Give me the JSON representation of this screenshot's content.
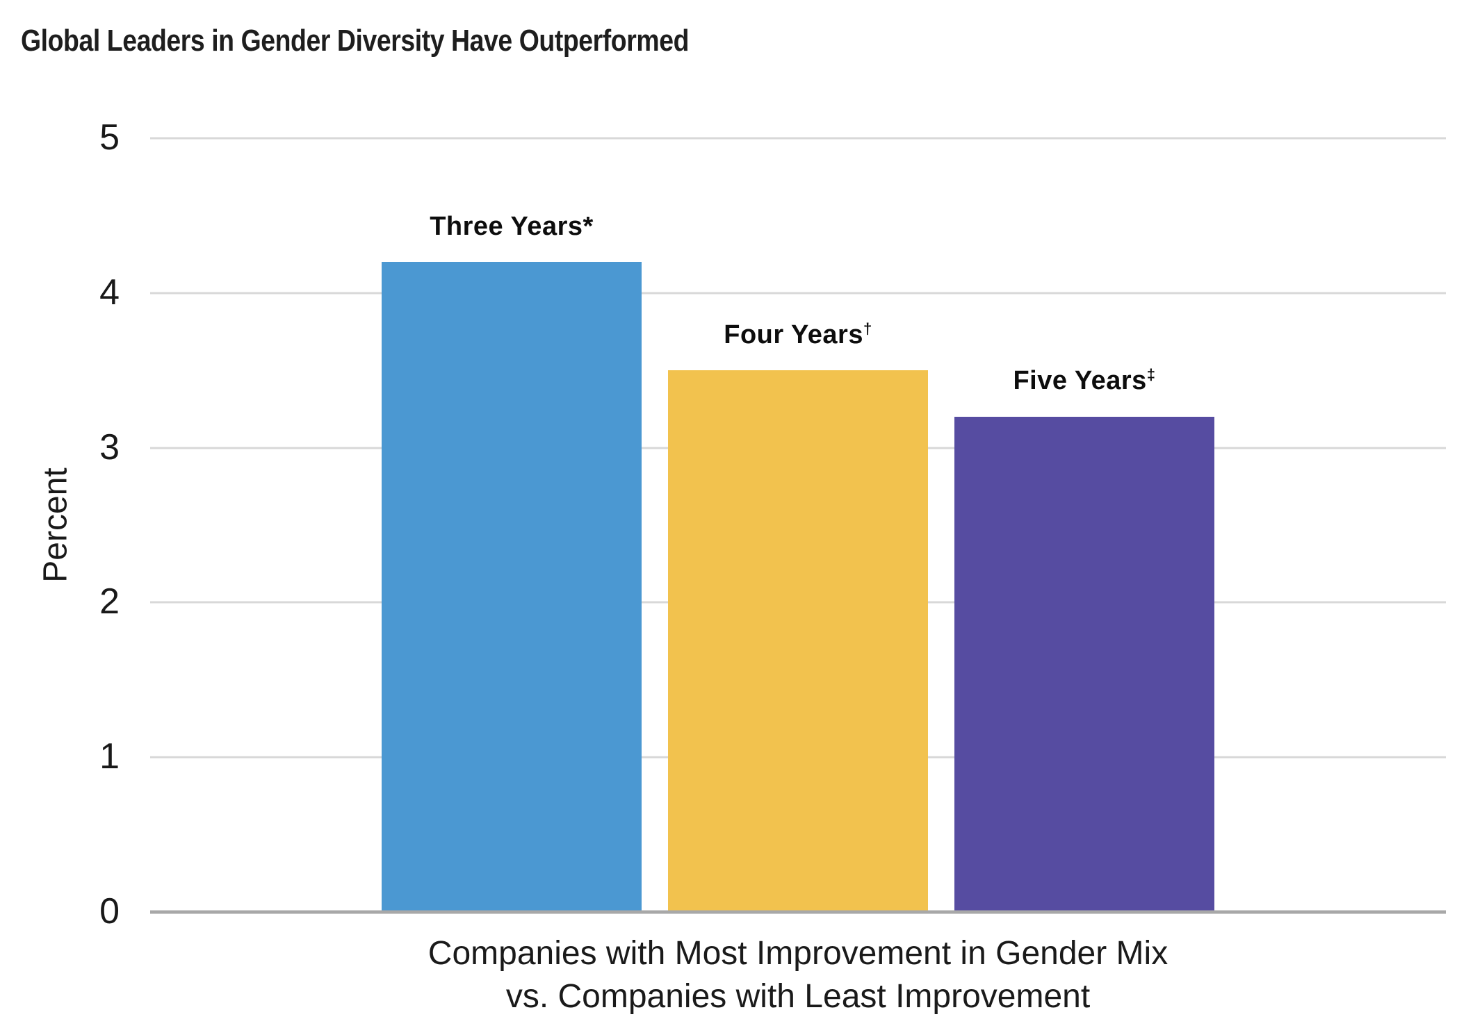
{
  "title": "Global Leaders in Gender Diversity Have Outperformed",
  "chart_data": {
    "type": "bar",
    "title": "Global Leaders in Gender Diversity Have Outperformed",
    "categories": [
      "Three Years*",
      "Four Years†",
      "Five Years‡"
    ],
    "values": [
      4.2,
      3.5,
      3.2
    ],
    "bar_labels": [
      {
        "base": "Three Years*",
        "sup": ""
      },
      {
        "base": "Four Years",
        "sup": "†"
      },
      {
        "base": "Five Years",
        "sup": "‡"
      }
    ],
    "bar_colors": [
      "#4B98D2",
      "#F2C24E",
      "#564CA1"
    ],
    "ylabel": "Percent",
    "xlabel": "Companies with Most Improvement in Gender Mix vs. Companies with Least Improvement",
    "xlabel_lines": [
      "Companies with Most Improvement in Gender Mix",
      "vs. Companies with Least Improvement"
    ],
    "ylim": [
      0,
      5
    ],
    "yticks": [
      0,
      1,
      2,
      3,
      4,
      5
    ],
    "grid": "horizontal",
    "legend": "none"
  },
  "colors": {
    "background": "#FFFFFF",
    "gridline": "#D8D8D8",
    "axis_line": "#A8A8A8",
    "text": "#191919"
  }
}
